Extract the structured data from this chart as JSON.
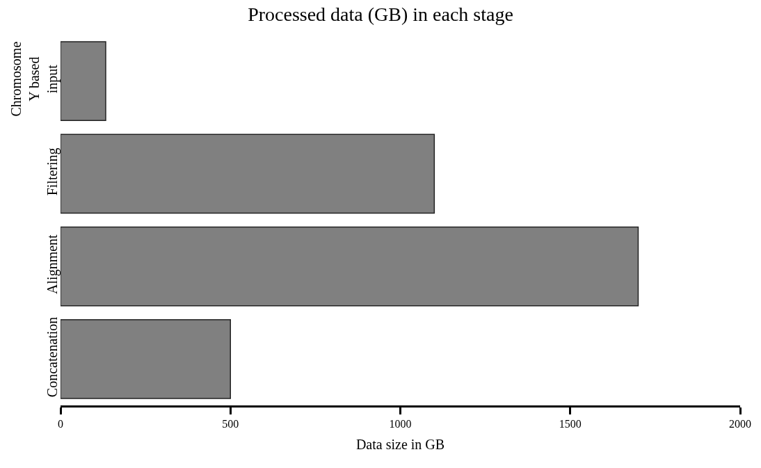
{
  "chart_data": {
    "type": "bar",
    "orientation": "horizontal",
    "title": "Processed data (GB) in each stage",
    "xlabel": "Data size in GB",
    "categories": [
      "Chromosome Y based input",
      "Filtering",
      "Alignment",
      "Concatenation"
    ],
    "values": [
      133,
      1100,
      1700,
      500
    ],
    "color": "#808080",
    "xlim": [
      0,
      2000
    ],
    "xticks": [
      0,
      500,
      1000,
      1500,
      2000
    ]
  }
}
